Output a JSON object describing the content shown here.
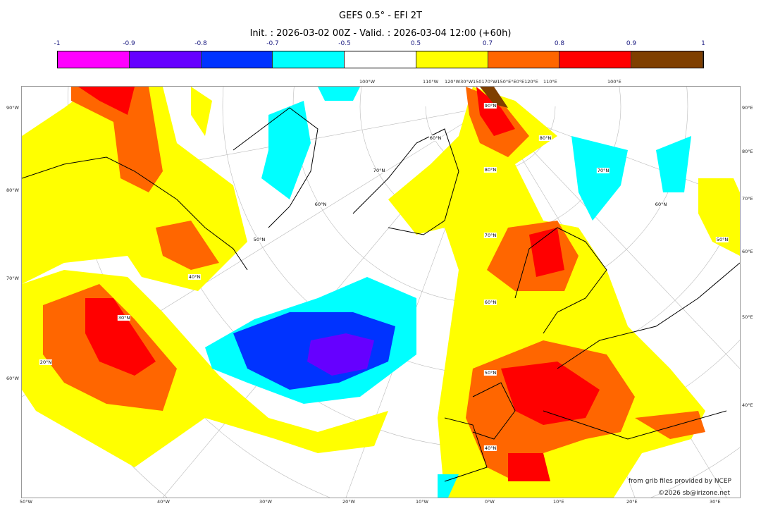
{
  "title": "GEFS 0.5° - EFI 2T",
  "subtitle": "Init. : 2026-03-02 00Z - Valid. : 2026-03-04 12:00 (+60h)",
  "colorbar": {
    "ticks": [
      "-1",
      "-0.9",
      "-0.8",
      "-0.7",
      "-0.5",
      "0.5",
      "0.7",
      "0.8",
      "0.9",
      "1"
    ],
    "colors": [
      "#ff00ff",
      "#6600ff",
      "#0033ff",
      "#00ffff",
      "#ffffff",
      "#ffff00",
      "#ff6600",
      "#ff0000",
      "#7f3f00"
    ]
  },
  "axes": {
    "left": [
      "90°W",
      "80°W",
      "70°W",
      "60°W"
    ],
    "right": [
      "90°E",
      "80°E",
      "70°E",
      "60°E",
      "50°E",
      "40°E"
    ],
    "bottom": [
      "50°W",
      "40°W",
      "30°W",
      "20°W",
      "10°W",
      "0°W",
      "10°E",
      "20°E",
      "30°E"
    ],
    "top": [
      "100°W",
      "110°W",
      "120°W30°W150170°W150°E°E0°E120°E",
      "110°E",
      "100°E"
    ]
  },
  "lat_labels": [
    "90°N",
    "80°N",
    "70°N",
    "60°N",
    "50°N",
    "40°N",
    "60°N",
    "70°N",
    "60°N",
    "50°N",
    "40°N",
    "30°N",
    "20°N",
    "80°N",
    "70°N",
    "60°N",
    "50°N"
  ],
  "credits": {
    "line1": "from grib files provided by NCEP",
    "line2": "©2026 sb@irizone.net"
  }
}
